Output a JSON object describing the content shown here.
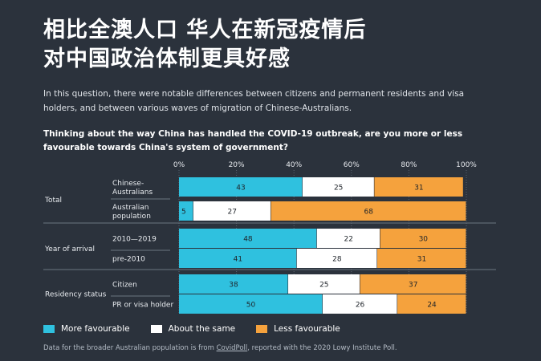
{
  "headline": {
    "line1": "相比全澳人口 华人在新冠疫情后",
    "line2": "对中国政治体制更具好感"
  },
  "intro": "In this question, there were notable differences between citizens and permanent residents and visa holders, and between various waves of migration of Chinese-Australians.",
  "question": "Thinking about the way China has handled the COVID-19 outbreak, are you more or less favourable towards China's system of government?",
  "colors": {
    "more": "#2fc1df",
    "same": "#ffffff",
    "less": "#f5a23d",
    "grid": "#5a6470",
    "text": "#e8ebef"
  },
  "chart_data": {
    "type": "bar",
    "orientation": "horizontal",
    "stacked": true,
    "xlim": [
      0,
      100
    ],
    "ticks": [
      "0%",
      "20%",
      "40%",
      "60%",
      "80%",
      "100%"
    ],
    "categories": [
      {
        "group": "Total",
        "label_lines": [
          "Chinese-",
          "Australians"
        ]
      },
      {
        "group": "Total",
        "label_lines": [
          "Australian",
          "population"
        ]
      },
      {
        "group": "Year of arrival",
        "label_lines": [
          "2010—2019"
        ]
      },
      {
        "group": "Year of arrival",
        "label_lines": [
          "pre-2010"
        ]
      },
      {
        "group": "Residency status",
        "label_lines": [
          "Citizen"
        ]
      },
      {
        "group": "Residency status",
        "label_lines": [
          "PR or visa holder"
        ]
      }
    ],
    "groups": [
      "Total",
      "Year of arrival",
      "Residency status"
    ],
    "series": [
      {
        "name": "More favourable",
        "values": [
          43,
          5,
          48,
          41,
          38,
          50
        ]
      },
      {
        "name": "About the same",
        "values": [
          25,
          27,
          22,
          28,
          25,
          26
        ]
      },
      {
        "name": "Less favourable",
        "values": [
          31,
          68,
          30,
          31,
          37,
          24
        ]
      }
    ]
  },
  "footnote": {
    "before": "Data for the broader Australian population is from ",
    "link": "CovidPoll",
    "after": ", reported with the 2020 Lowy Institute Poll."
  }
}
